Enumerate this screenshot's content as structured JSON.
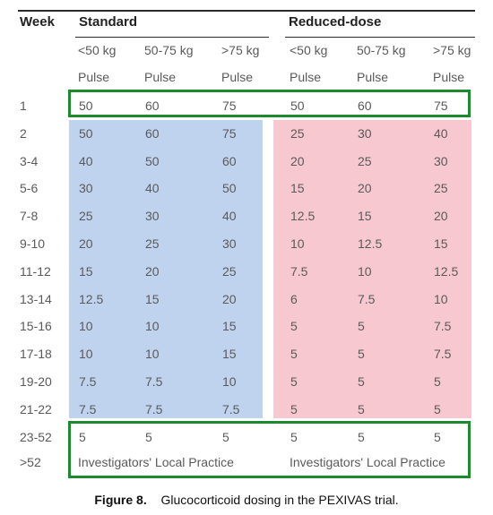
{
  "header": {
    "week_label": "Week",
    "standard_label": "Standard",
    "reduced_label": "Reduced-dose",
    "weights": [
      "<50 kg",
      "50-75 kg",
      ">75 kg",
      "<50 kg",
      "50-75 kg",
      ">75 kg"
    ],
    "pulse": [
      "Pulse",
      "Pulse",
      "Pulse",
      "Pulse",
      "Pulse",
      "Pulse"
    ]
  },
  "rows": [
    {
      "week": "1",
      "values": [
        "50",
        "60",
        "75",
        "50",
        "60",
        "75"
      ]
    },
    {
      "week": "2",
      "values": [
        "50",
        "60",
        "75",
        "25",
        "30",
        "40"
      ]
    },
    {
      "week": "3-4",
      "values": [
        "40",
        "50",
        "60",
        "20",
        "25",
        "30"
      ]
    },
    {
      "week": "5-6",
      "values": [
        "30",
        "40",
        "50",
        "15",
        "20",
        "25"
      ]
    },
    {
      "week": "7-8",
      "values": [
        "25",
        "30",
        "40",
        "12.5",
        "15",
        "20"
      ]
    },
    {
      "week": "9-10",
      "values": [
        "20",
        "25",
        "30",
        "10",
        "12.5",
        "15"
      ]
    },
    {
      "week": "11-12",
      "values": [
        "15",
        "20",
        "25",
        "7.5",
        "10",
        "12.5"
      ]
    },
    {
      "week": "13-14",
      "values": [
        "12.5",
        "15",
        "20",
        "6",
        "7.5",
        "10"
      ]
    },
    {
      "week": "15-16",
      "values": [
        "10",
        "10",
        "15",
        "5",
        "5",
        "7.5"
      ]
    },
    {
      "week": "17-18",
      "values": [
        "10",
        "10",
        "15",
        "5",
        "5",
        "7.5"
      ]
    },
    {
      "week": "19-20",
      "values": [
        "7.5",
        "7.5",
        "10",
        "5",
        "5",
        "5"
      ]
    },
    {
      "week": "21-22",
      "values": [
        "7.5",
        "7.5",
        "7.5",
        "5",
        "5",
        "5"
      ]
    },
    {
      "week": "23-52",
      "values": [
        "5",
        "5",
        "5",
        "5",
        "5",
        "5"
      ]
    }
  ],
  "last_row": {
    "week": ">52",
    "standard": "Investigators' Local Practice",
    "reduced": "Investigators' Local Practice"
  },
  "caption": {
    "label": "Figure 8.",
    "text": "Glucocorticoid dosing in the PEXIVAS trial."
  },
  "colors": {
    "standard_fill": "#bfd3ee",
    "reduced_fill": "#f7c8cf",
    "highlight_border": "#1e8a2e"
  }
}
